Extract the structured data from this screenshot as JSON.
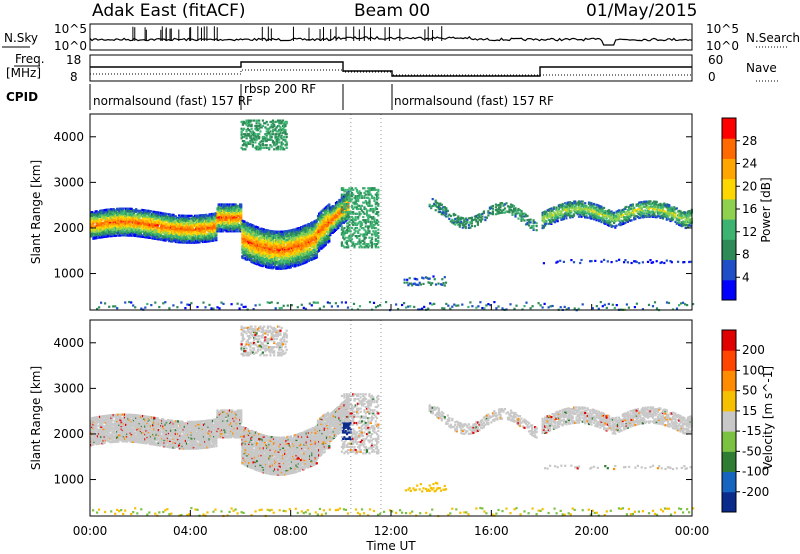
{
  "header": {
    "title": "Adak East (fitACF)",
    "beam": "Beam 00",
    "date": "01/May/2015"
  },
  "nsky_panel": {
    "left_label": "N.Sky",
    "right_label": "N.Search",
    "left_ticks": [
      "10^5",
      "10^0"
    ],
    "right_ticks": [
      "10^5",
      "10^0"
    ]
  },
  "freq_panel": {
    "left_label_line1": "Freq.",
    "left_label_line2": "[MHz]",
    "right_label": "Nave",
    "left_ticks": [
      "18",
      "8"
    ],
    "right_ticks": [
      "60",
      "0"
    ]
  },
  "cpid": {
    "label": "CPID",
    "segments": [
      {
        "text": "normalsound (fast) 157 RF",
        "start_h": 0,
        "end_h": 6
      },
      {
        "text": "rbsp 200 RF",
        "start_h": 6,
        "end_h": 10
      },
      {
        "text": "normalsound (fast) 157 RF",
        "start_h": 12,
        "end_h": 24
      }
    ]
  },
  "chart_data": [
    {
      "type": "heatmap",
      "ylabel": "Slant Range [km]",
      "y_ticks": [
        1000,
        2000,
        3000,
        4000
      ],
      "ylim": [
        200,
        4500
      ],
      "xlim": [
        0,
        24
      ],
      "colorbar": {
        "label": "Power [dB]",
        "ticks": [
          "28",
          "24",
          "20",
          "16",
          "12",
          "8",
          "4"
        ],
        "colors": [
          "#0000ff",
          "#1f4fc8",
          "#2e8b57",
          "#3cb371",
          "#8fd14f",
          "#ffd700",
          "#ffa500",
          "#ff6a00",
          "#ff0000"
        ]
      },
      "echo_bands": [
        {
          "start_h": 0.0,
          "end_h": 10.3,
          "ranges_km": [
            [
              1800,
              2300
            ],
            [
              1900,
              2350
            ],
            [
              2050,
              2450
            ],
            [
              1500,
              2200
            ],
            [
              1700,
              2900
            ]
          ]
        },
        {
          "start_h": 6.0,
          "end_h": 8.0,
          "ranges_km": [
            [
              3800,
              4400
            ]
          ]
        },
        {
          "start_h": 10.0,
          "end_h": 11.5,
          "ranges_km": [
            [
              1600,
              2800
            ]
          ]
        },
        {
          "start_h": 12.0,
          "end_h": 14.0,
          "ranges_km": [
            [
              700,
              900
            ]
          ]
        },
        {
          "start_h": 18.0,
          "end_h": 24.0,
          "ranges_km": [
            [
              1800,
              2700
            ],
            [
              1200,
              1400
            ]
          ]
        }
      ]
    },
    {
      "type": "heatmap",
      "xlabel": "Time UT",
      "ylabel": "Slant Range [km]",
      "x_ticks": [
        "00:00",
        "04:00",
        "08:00",
        "12:00",
        "16:00",
        "20:00",
        "00:00"
      ],
      "y_ticks": [
        1000,
        2000,
        3000,
        4000
      ],
      "ylim": [
        200,
        4500
      ],
      "xlim": [
        0,
        24
      ],
      "colorbar": {
        "label": "Velocity [m s^-1]",
        "ticks": [
          "200",
          "100",
          "50",
          "15",
          "-15",
          "-50",
          "-100",
          "-200"
        ],
        "colors": [
          "#0a2a8c",
          "#1565c0",
          "#2e7d32",
          "#7cc242",
          "#c8c8c8",
          "#f5c000",
          "#ff8c00",
          "#ff4500",
          "#e00000"
        ]
      }
    }
  ]
}
